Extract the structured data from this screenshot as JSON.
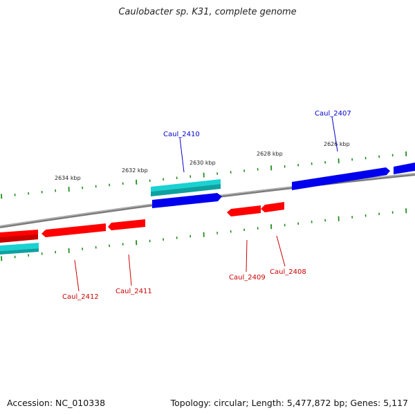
{
  "title": "Caulobacter sp. K31, complete genome",
  "footer": {
    "accession_text": "Accession: NC_010338",
    "info_text": "Topology: circular; Length: 5,477,872 bp; Genes: 5,117"
  },
  "colors": {
    "backbone": "#8a8a8a",
    "tick": "#1e8c1e",
    "forward_gene": "#0000e6",
    "reverse_gene": "#e60000",
    "other_gene": "#19c8c8",
    "forward_label": "#0000cc",
    "reverse_label": "#cc0000"
  },
  "ticks": [
    {
      "label": "2634 kbp"
    },
    {
      "label": "2632 kbp"
    },
    {
      "label": "2630 kbp"
    },
    {
      "label": "2628 kbp"
    },
    {
      "label": "2626 kbp"
    }
  ],
  "gene_labels": [
    {
      "id": "Caul_2407",
      "strand": "forward"
    },
    {
      "id": "Caul_2410",
      "strand": "forward"
    },
    {
      "id": "Caul_2412",
      "strand": "reverse"
    },
    {
      "id": "Caul_2411",
      "strand": "reverse"
    },
    {
      "id": "Caul_2409",
      "strand": "reverse"
    },
    {
      "id": "Caul_2408",
      "strand": "reverse"
    }
  ]
}
